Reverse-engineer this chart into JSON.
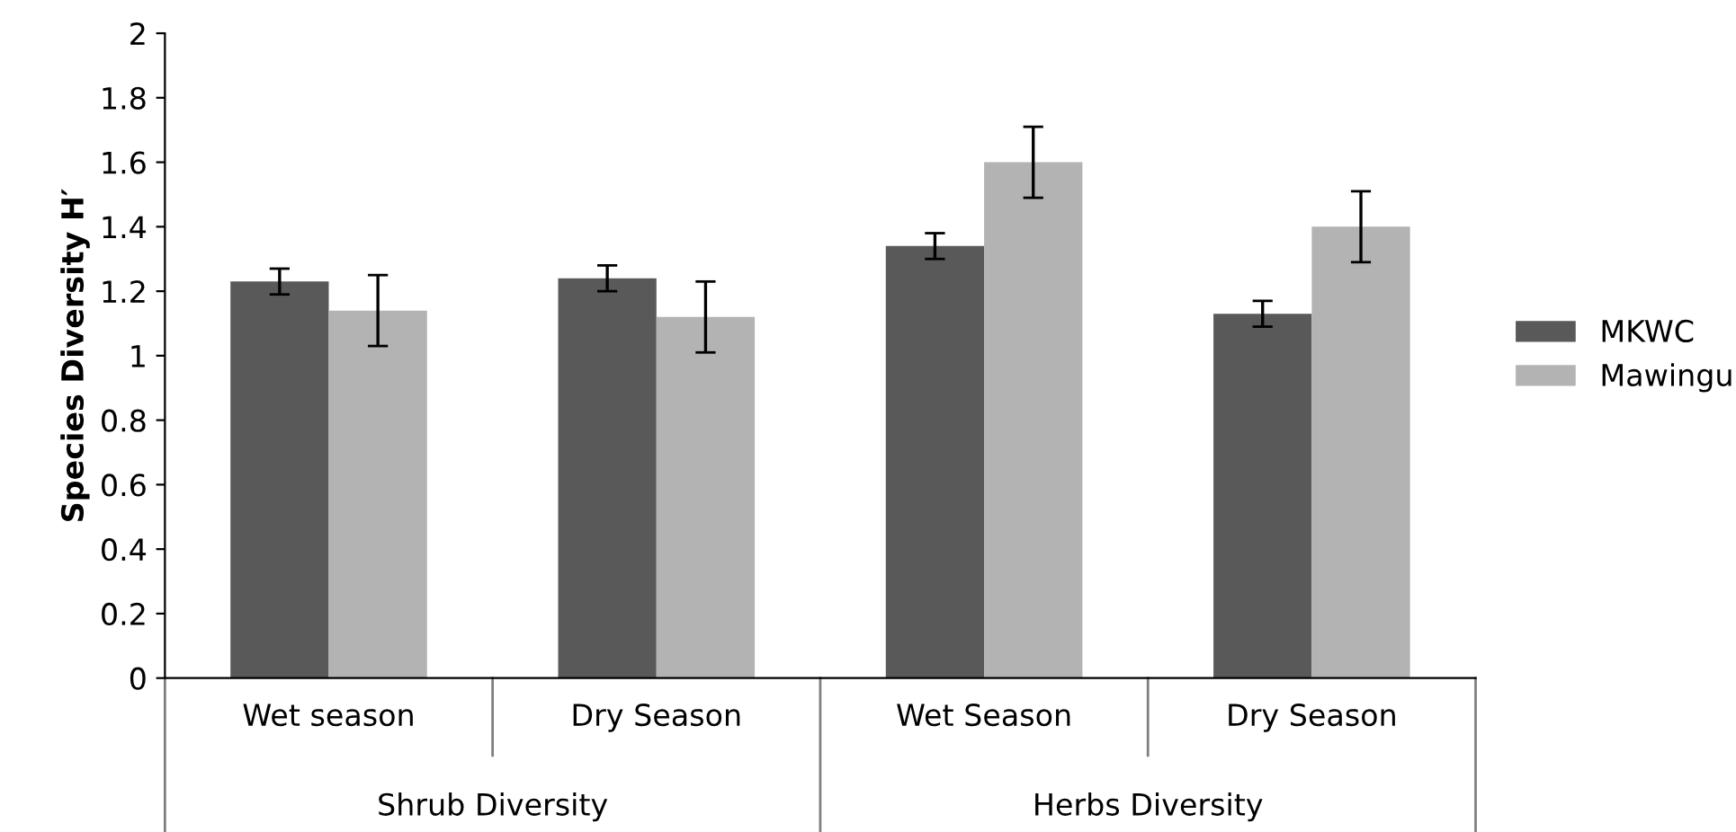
{
  "chart_data": {
    "type": "bar",
    "ylabel": "Species Diversity H′",
    "categories": [
      "Wet season",
      "Dry Season",
      "Wet Season",
      "Dry Season"
    ],
    "series": [
      {
        "name": "MKWC",
        "color": "#595959",
        "values": [
          1.23,
          1.24,
          1.34,
          1.13
        ],
        "errors": [
          0.04,
          0.04,
          0.04,
          0.04
        ]
      },
      {
        "name": "Mawingu",
        "color": "#b3b3b3",
        "values": [
          1.14,
          1.12,
          1.6,
          1.4
        ],
        "errors": [
          0.11,
          0.11,
          0.11,
          0.11
        ]
      }
    ],
    "annotations": [
      "Shrub Diversity",
      "Herbs Diversity"
    ],
    "ylim": [
      0,
      2
    ],
    "yticks": [
      0,
      0.2,
      0.4,
      0.6,
      0.8,
      1,
      1.2,
      1.4,
      1.6,
      1.8,
      2
    ],
    "grid": false,
    "legend": "right"
  }
}
